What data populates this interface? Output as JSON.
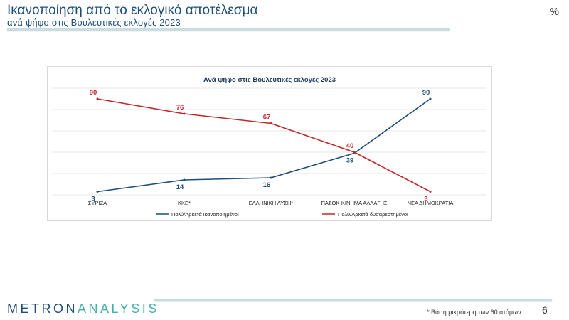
{
  "header": {
    "title": "Ικανοποίηση από το εκλογικό αποτέλεσμα",
    "subtitle": "ανά ψήφο στις Βουλευτικές εκλογές 2023",
    "unit": "%"
  },
  "footer": {
    "brand_part1": "METRON",
    "brand_part2": "ANALYSIS",
    "footnote": "* Βάση μικρότερη των 60 ατόμων",
    "page_number": "6"
  },
  "colors": {
    "satisfied": "#1f4e79",
    "dissatisfied": "#c0282d",
    "brand_teal": "#45b0a8"
  },
  "chart_data": {
    "type": "line",
    "title": "Ανά ψήφο στις Βουλευτικές εκλογές 2023",
    "categories": [
      "ΣΥΡΙΖΑ",
      "ΚΚΕ*",
      "ΕΛΛΗΝΙΚΗ ΛΥΣΗ*",
      "ΠΑΣΟΚ-ΚΙΝΗΜΑ ΑΛΛΑΓΗΣ",
      "ΝΕΑ ΔΗΜΟΚΡΑΤΙΑ"
    ],
    "series": [
      {
        "name": "Πολύ/Αρκετά ικανοποιημένοι",
        "values": [
          3,
          14,
          16,
          39,
          90
        ]
      },
      {
        "name": "Πολύ/Αρκετά δυσαρεστημένοι",
        "values": [
          90,
          76,
          67,
          40,
          3
        ]
      }
    ],
    "ylim": [
      0,
      100
    ],
    "grid": true,
    "legend": "bottom"
  }
}
